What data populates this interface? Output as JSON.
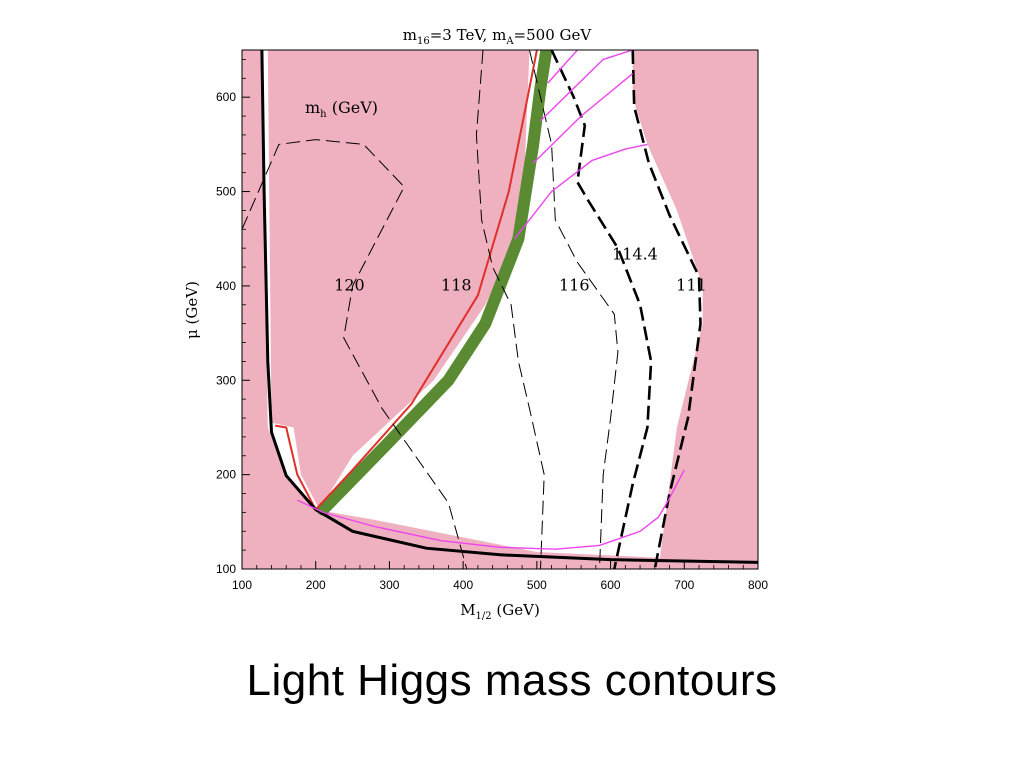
{
  "slide": {
    "title": "Light  Higgs  mass contours"
  },
  "chart_data": {
    "type": "line",
    "title": {
      "m_label": "m",
      "m_sub": "16",
      "m_value": "=3 TeV,  ",
      "ma_label": "m",
      "ma_sub": "A",
      "ma_value": "=500 GeV"
    },
    "xlabel": {
      "main": "M",
      "sub": "1/2",
      "unit": " (GeV)"
    },
    "ylabel": {
      "main": "μ",
      "unit": "  (GeV)"
    },
    "xlim": [
      100,
      800
    ],
    "ylim": [
      100,
      650
    ],
    "x_ticks": [
      100,
      200,
      300,
      400,
      500,
      600,
      700,
      800
    ],
    "y_ticks": [
      100,
      200,
      300,
      400,
      500,
      600
    ],
    "legend_label": {
      "main": "m",
      "sub": "h",
      "unit": " (GeV)"
    },
    "colors": {
      "excluded_region": "#efb0bf",
      "allowed_region": "#ffffff",
      "green_band": "#5a8a32",
      "red_edge": "#e0302a",
      "magenta": "#ee44ee",
      "contour": "#000000"
    },
    "contour_labels": [
      {
        "text": "120",
        "x": 225,
        "y": 395
      },
      {
        "text": "118",
        "x": 370,
        "y": 395
      },
      {
        "text": "116",
        "x": 530,
        "y": 395
      },
      {
        "text": "114.4",
        "x": 602,
        "y": 428
      },
      {
        "text": "111",
        "x": 689,
        "y": 395
      }
    ],
    "regions": [
      {
        "name": "excluded-left",
        "points": [
          [
            100,
            650
          ],
          [
            127,
            650
          ],
          [
            135,
            250
          ],
          [
            160,
            199
          ],
          [
            200,
            163
          ],
          [
            280,
            152
          ],
          [
            500,
            118
          ],
          [
            800,
            107
          ],
          [
            800,
            100
          ],
          [
            100,
            100
          ]
        ]
      },
      {
        "name": "excluded-upper",
        "points": [
          [
            135,
            650
          ],
          [
            490,
            650
          ],
          [
            480,
            460
          ],
          [
            430,
            380
          ],
          [
            360,
            300
          ],
          [
            250,
            220
          ],
          [
            205,
            163
          ],
          [
            180,
            200
          ],
          [
            170,
            250
          ],
          [
            140,
            255
          ]
        ]
      },
      {
        "name": "excluded-right",
        "points": [
          [
            630,
            650
          ],
          [
            800,
            650
          ],
          [
            800,
            100
          ],
          [
            665,
            100
          ],
          [
            690,
            250
          ],
          [
            725,
            360
          ],
          [
            725,
            400
          ],
          [
            690,
            480
          ],
          [
            650,
            550
          ],
          [
            630,
            600
          ]
        ]
      }
    ],
    "series": [
      {
        "style": "green-band",
        "x": [
          210,
          300,
          380,
          430,
          475,
          495,
          505,
          513
        ],
        "y": [
          163,
          235,
          300,
          360,
          450,
          550,
          610,
          650
        ]
      },
      {
        "style": "red-edge",
        "x": [
          145,
          160,
          163,
          175,
          200,
          250,
          330,
          420,
          462,
          485,
          500
        ],
        "y": [
          252,
          250,
          240,
          200,
          163,
          205,
          275,
          390,
          500,
          590,
          650
        ]
      },
      {
        "style": "solid-thick",
        "x": [
          127,
          130,
          135,
          140,
          160,
          200,
          250,
          350,
          450,
          600,
          800
        ],
        "y": [
          650,
          500,
          320,
          245,
          199,
          163,
          140,
          122,
          115,
          110,
          107
        ]
      },
      {
        "style": "dashed-thin",
        "label": "120",
        "x": [
          100,
          150,
          200,
          265,
          320,
          250,
          238,
          290,
          380,
          405
        ],
        "y": [
          460,
          550,
          555,
          550,
          505,
          400,
          345,
          270,
          170,
          100
        ]
      },
      {
        "style": "dashed-thin",
        "label": "118",
        "x": [
          427,
          418,
          425,
          440,
          465,
          475,
          490,
          510,
          505
        ],
        "y": [
          650,
          560,
          470,
          420,
          380,
          320,
          270,
          200,
          100
        ]
      },
      {
        "style": "dashed-thin",
        "label": "116",
        "x": [
          490,
          505,
          520,
          525,
          555,
          605,
          610,
          600,
          590,
          585
        ],
        "y": [
          650,
          600,
          550,
          470,
          425,
          370,
          330,
          260,
          200,
          100
        ]
      },
      {
        "style": "dashed-thick",
        "label": "114.4",
        "x": [
          520,
          550,
          565,
          555,
          570,
          610,
          640,
          655,
          650,
          630,
          605
        ],
        "y": [
          650,
          600,
          570,
          510,
          490,
          440,
          380,
          320,
          250,
          190,
          100
        ]
      },
      {
        "style": "dashed-thick",
        "label": "111",
        "x": [
          630,
          632,
          652,
          680,
          720,
          722,
          705,
          680,
          660
        ],
        "y": [
          650,
          590,
          530,
          475,
          410,
          360,
          260,
          180,
          100
        ]
      },
      {
        "style": "magenta",
        "x": [
          175,
          210,
          280,
          370,
          450,
          525,
          585,
          640,
          665,
          680,
          700
        ],
        "y": [
          173,
          160,
          145,
          130,
          123,
          121,
          125,
          140,
          155,
          175,
          205
        ]
      },
      {
        "style": "magenta",
        "x": [
          470,
          520,
          575,
          620,
          650
        ],
        "y": [
          450,
          500,
          533,
          545,
          550
        ]
      },
      {
        "style": "magenta",
        "x": [
          495,
          560,
          630
        ],
        "y": [
          530,
          580,
          625
        ]
      },
      {
        "style": "magenta",
        "x": [
          505,
          590,
          630
        ],
        "y": [
          575,
          640,
          650
        ]
      },
      {
        "style": "magenta",
        "x": [
          515,
          555
        ],
        "y": [
          615,
          650
        ]
      }
    ]
  }
}
